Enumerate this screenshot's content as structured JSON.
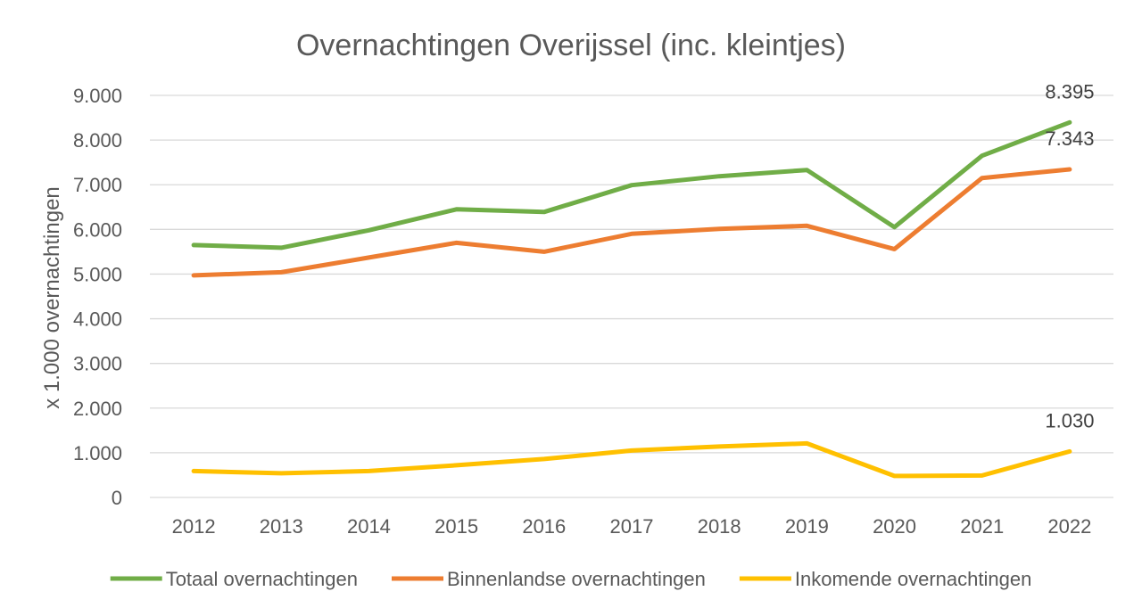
{
  "chart_data": {
    "type": "line",
    "title": "Overnachtingen Overijssel (inc. kleintjes)",
    "xlabel": "",
    "ylabel": "x 1.000 overnachtingen",
    "ylim": [
      0,
      9000
    ],
    "yticks": [
      0,
      1000,
      2000,
      3000,
      4000,
      5000,
      6000,
      7000,
      8000,
      9000
    ],
    "ytick_labels": [
      "0",
      "1.000",
      "2.000",
      "3.000",
      "4.000",
      "5.000",
      "6.000",
      "7.000",
      "8.000",
      "9.000"
    ],
    "grid": true,
    "legend_position": "bottom",
    "categories": [
      "2012",
      "2013",
      "2014",
      "2015",
      "2016",
      "2017",
      "2018",
      "2019",
      "2020",
      "2021",
      "2022"
    ],
    "series": [
      {
        "name": "Totaal overnachtingen",
        "color": "#70ad47",
        "values": [
          5650,
          5590,
          5980,
          6450,
          6390,
          6990,
          7190,
          7330,
          6050,
          7650,
          8395
        ],
        "end_label": "8.395"
      },
      {
        "name": "Binnenlandse overnachtingen",
        "color": "#ed7d31",
        "values": [
          4970,
          5040,
          5370,
          5700,
          5500,
          5900,
          6010,
          6080,
          5560,
          7150,
          7343
        ],
        "end_label": "7.343"
      },
      {
        "name": "Inkomende overnachtingen",
        "color": "#ffc000",
        "values": [
          590,
          540,
          590,
          720,
          860,
          1050,
          1140,
          1210,
          480,
          490,
          1030
        ],
        "end_label": "1.030"
      }
    ]
  }
}
